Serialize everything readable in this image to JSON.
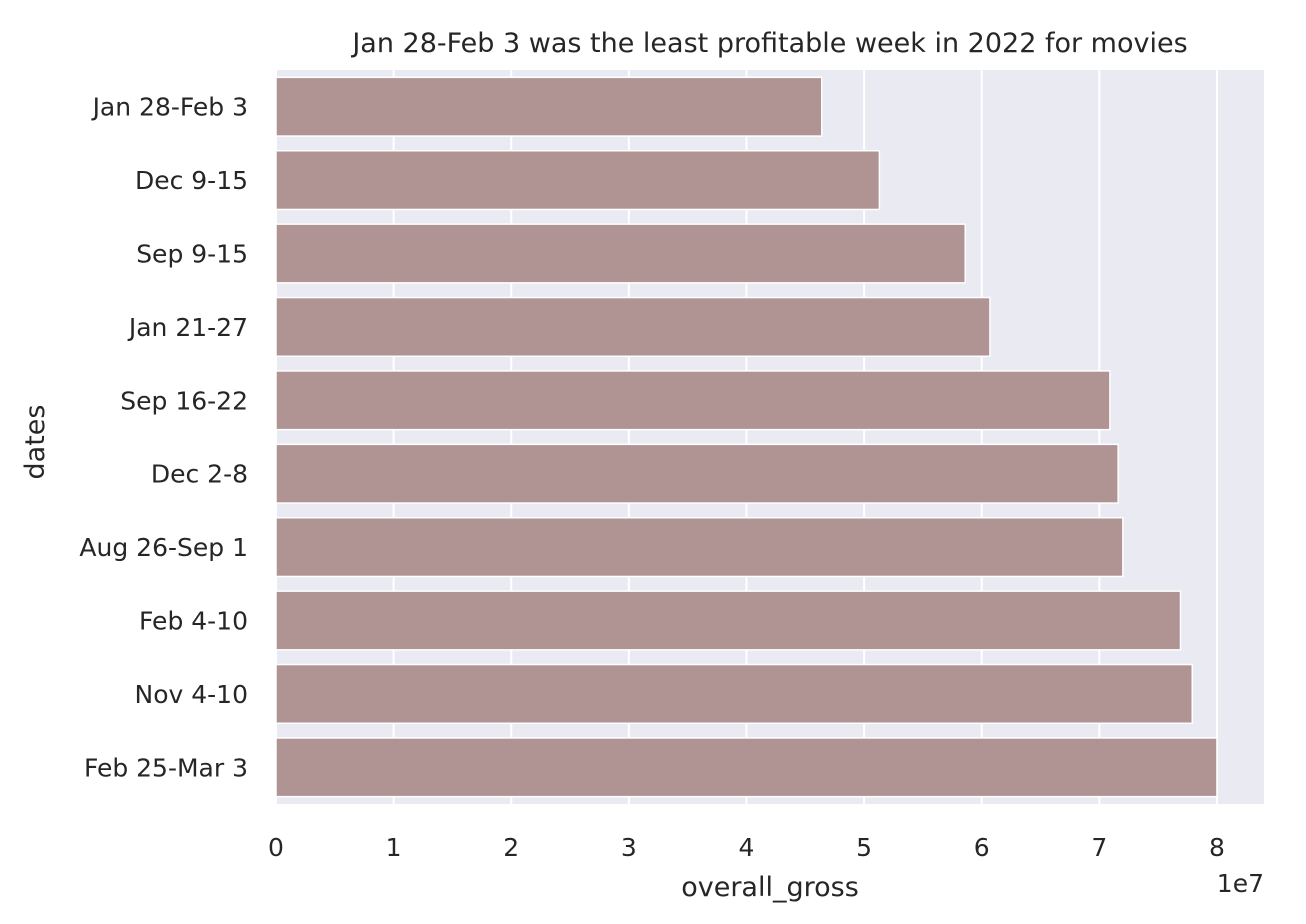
{
  "chart_data": {
    "type": "bar",
    "orientation": "horizontal",
    "title": "Jan 28-Feb 3 was the least profitable week in 2022 for movies",
    "xlabel": "overall_gross",
    "ylabel": "dates",
    "x_offset_text": "1e7",
    "xlim": [
      0,
      8.4
    ],
    "xticks": [
      0,
      1,
      2,
      3,
      4,
      5,
      6,
      7,
      8
    ],
    "grid": true,
    "categories": [
      "Jan 28-Feb 3",
      "Dec 9-15",
      "Sep 9-15",
      "Jan 21-27",
      "Sep 16-22",
      "Dec 2-8",
      "Aug 26-Sep 1",
      "Feb 4-10",
      "Nov 4-10",
      "Feb 25-Mar 3"
    ],
    "values": [
      4.64,
      5.13,
      5.86,
      6.07,
      7.09,
      7.16,
      7.2,
      7.69,
      7.79,
      8.0
    ],
    "value_scale": 10000000,
    "colors": {
      "bar": "#b09494",
      "bar_edge": "#ffffff",
      "plot_background": "#eaeaf2",
      "grid": "#ffffff",
      "text": "#262626"
    }
  }
}
